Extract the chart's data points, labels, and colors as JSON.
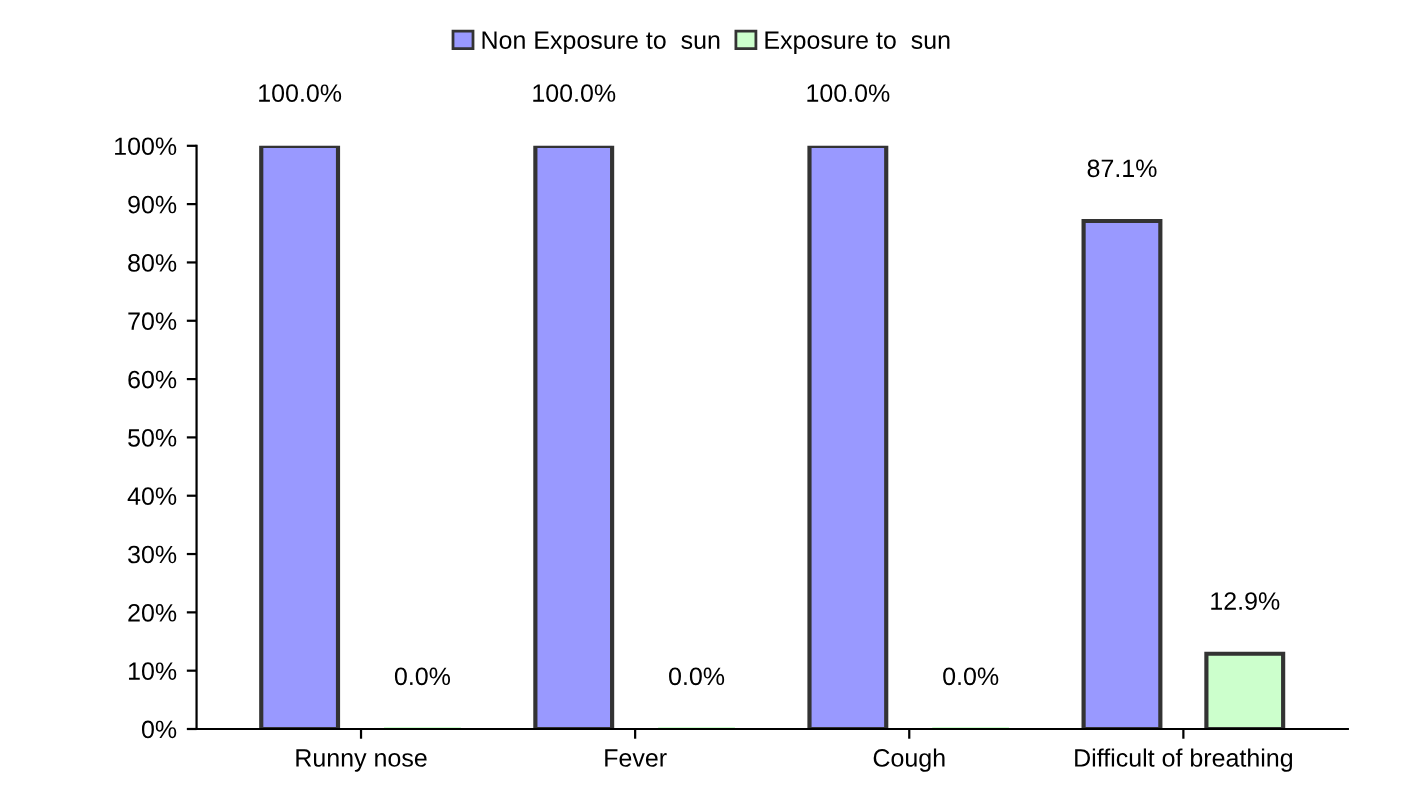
{
  "chart_data": {
    "type": "bar",
    "categories": [
      "Runny nose",
      "Fever",
      "Cough",
      "Difficult of breathing"
    ],
    "series": [
      {
        "name": "Non Exposure to  sun",
        "color": "#9999ff",
        "values": [
          100.0,
          100.0,
          100.0,
          87.1
        ],
        "value_labels": [
          "100.0%",
          "100.0%",
          "100.0%",
          "87.1%"
        ]
      },
      {
        "name": "Exposure to  sun",
        "color": "#ccffcc",
        "values": [
          0.0,
          0.0,
          0.0,
          12.9
        ],
        "value_labels": [
          "0.0%",
          "0.0%",
          "0.0%",
          "12.9%"
        ]
      }
    ],
    "ylim": [
      0,
      100
    ],
    "yticks": [
      {
        "value": 0,
        "label": "0%"
      },
      {
        "value": 10,
        "label": "10%"
      },
      {
        "value": 20,
        "label": "20%"
      },
      {
        "value": 30,
        "label": "30%"
      },
      {
        "value": 40,
        "label": "40%"
      },
      {
        "value": 50,
        "label": "50%"
      },
      {
        "value": 60,
        "label": "60%"
      },
      {
        "value": 70,
        "label": "70%"
      },
      {
        "value": 80,
        "label": "80%"
      },
      {
        "value": 90,
        "label": "90%"
      },
      {
        "value": 100,
        "label": "100%"
      }
    ],
    "grid": false,
    "legend": "top"
  }
}
